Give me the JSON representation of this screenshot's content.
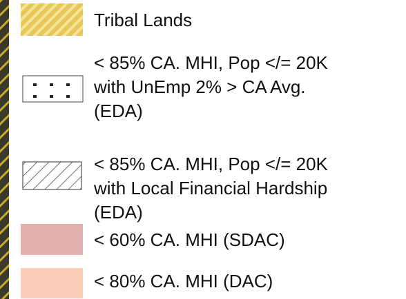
{
  "legend": {
    "items": [
      {
        "label": [
          "Tribal Lands"
        ]
      },
      {
        "label": [
          "< 85% CA. MHI, Pop </= 20K",
          "with UnEmp 2% > CA Avg.",
          "(EDA)"
        ]
      },
      {
        "label": [
          "< 85% CA. MHI, Pop </= 20K",
          "with Local Financial Hardship",
          "(EDA)"
        ]
      },
      {
        "label": [
          "< 60% CA. MHI (SDAC)"
        ]
      },
      {
        "label": [
          "< 80% CA. MHI (DAC)"
        ]
      }
    ]
  }
}
